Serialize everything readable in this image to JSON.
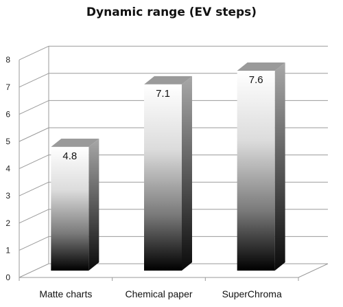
{
  "chart_data": {
    "type": "bar",
    "title": "Dynamic range (EV steps)",
    "categories": [
      "Matte charts",
      "Chemical paper",
      "SuperChroma"
    ],
    "values": [
      4.8,
      7.1,
      7.6
    ],
    "ylim": [
      0,
      8
    ],
    "yticks": [
      0,
      1,
      2,
      3,
      4,
      5,
      6,
      7,
      8
    ],
    "grid": true,
    "legend": "none",
    "style": "3d-gradient-columns",
    "colors": {
      "grid": "#9a9a9a",
      "bar_top": "#ffffff",
      "bar_bottom": "#000000",
      "bar_side": "#8c8c8c",
      "bar_cap": "#9a9a9a"
    }
  }
}
